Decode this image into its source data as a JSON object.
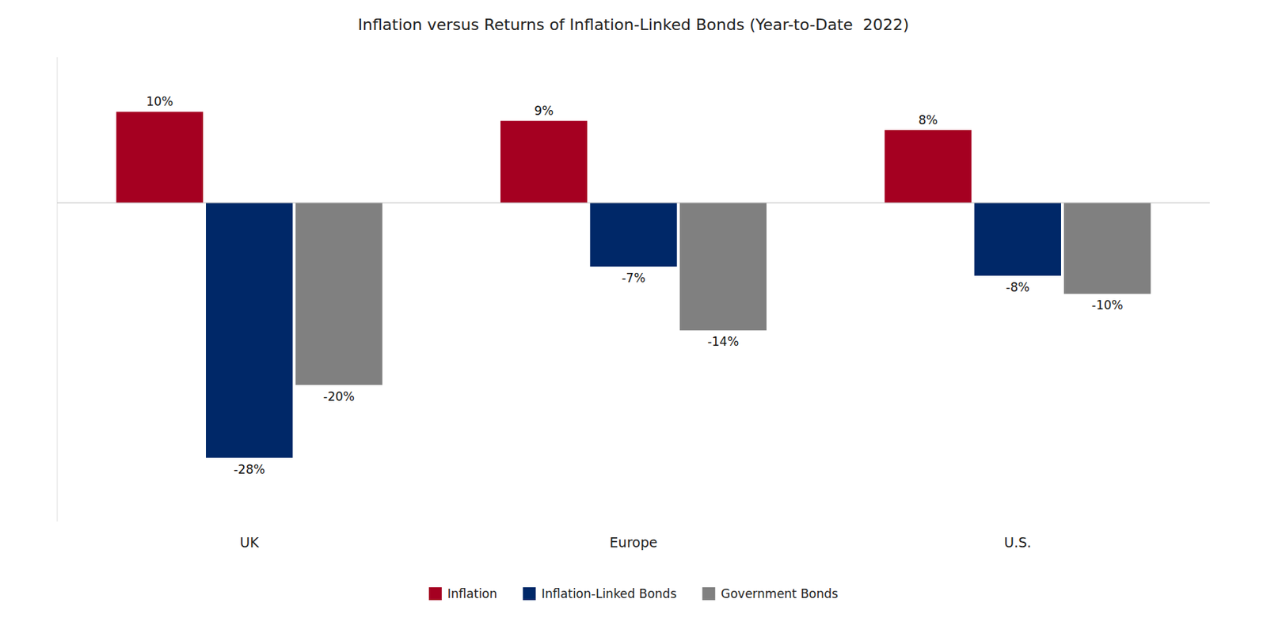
{
  "chart_data": {
    "type": "bar",
    "title": "Inflation versus Returns of Inflation-Linked Bonds (Year-to-Date  2022)",
    "categories": [
      "UK",
      "Europe",
      "U.S."
    ],
    "series": [
      {
        "name": "Inflation",
        "color": "#A50021",
        "values": [
          10,
          9,
          8
        ],
        "value_labels": [
          "10%",
          "9%",
          "8%"
        ]
      },
      {
        "name": "Inflation-Linked Bonds",
        "color": "#002868",
        "values": [
          -28,
          -7,
          -8
        ],
        "value_labels": [
          "-28%",
          "-7%",
          "-8%"
        ]
      },
      {
        "name": "Government Bonds",
        "color": "#808080",
        "values": [
          -20,
          -14,
          -10
        ],
        "value_labels": [
          "-20%",
          "-14%",
          "-10%"
        ]
      }
    ],
    "ylim": [
      -35,
      16
    ],
    "tick_labels": "x",
    "data_labels": true,
    "legend": "bottom",
    "grid": false
  }
}
